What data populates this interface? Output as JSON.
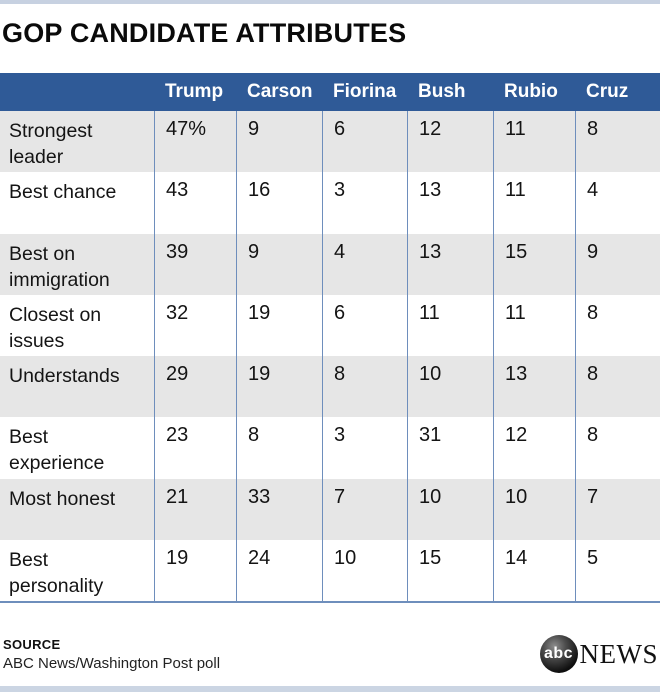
{
  "title": "GOP CANDIDATE ATTRIBUTES",
  "table": {
    "columns": [
      "Trump",
      "Carson",
      "Fiorina",
      "Bush",
      "Rubio",
      "Cruz"
    ],
    "rows": [
      {
        "label": "Strongest leader",
        "values": [
          "47%",
          "9",
          "6",
          "12",
          "11",
          "8"
        ]
      },
      {
        "label": "Best chance",
        "values": [
          "43",
          "16",
          "3",
          "13",
          "11",
          "4"
        ]
      },
      {
        "label": "Best on immigration",
        "values": [
          "39",
          "9",
          "4",
          "13",
          "15",
          "9"
        ]
      },
      {
        "label": "Closest on issues",
        "values": [
          "32",
          "19",
          "6",
          "11",
          "11",
          "8"
        ]
      },
      {
        "label": "Understands",
        "values": [
          "29",
          "19",
          "8",
          "10",
          "13",
          "8"
        ]
      },
      {
        "label": "Best experience",
        "values": [
          "23",
          "8",
          "3",
          "31",
          "12",
          "8"
        ]
      },
      {
        "label": "Most honest",
        "values": [
          "21",
          "33",
          "7",
          "10",
          "10",
          "7"
        ]
      },
      {
        "label": "Best personality",
        "values": [
          "19",
          "24",
          "10",
          "15",
          "14",
          "5"
        ]
      }
    ]
  },
  "footer": {
    "source_label": "SOURCE",
    "source_text": "ABC News/Washington Post poll",
    "logo_circle_text": "abc",
    "logo_news_text": "NEWS"
  },
  "colors": {
    "header_blue": "#2f5a97",
    "row_gray": "#e6e6e6",
    "grid_blue": "#6e8ebc",
    "accent_bar_top": "#c7d1e1",
    "accent_bar_bottom": "#cbd5e3"
  },
  "chart_data": {
    "type": "table",
    "title": "GOP CANDIDATE ATTRIBUTES",
    "columns": [
      "Trump",
      "Carson",
      "Fiorina",
      "Bush",
      "Rubio",
      "Cruz"
    ],
    "rows": [
      "Strongest leader",
      "Best chance",
      "Best on immigration",
      "Closest on issues",
      "Understands",
      "Best experience",
      "Most honest",
      "Best personality"
    ],
    "values_percent": [
      [
        47,
        9,
        6,
        12,
        11,
        8
      ],
      [
        43,
        16,
        3,
        13,
        11,
        4
      ],
      [
        39,
        9,
        4,
        13,
        15,
        9
      ],
      [
        32,
        19,
        6,
        11,
        11,
        8
      ],
      [
        29,
        19,
        8,
        10,
        13,
        8
      ],
      [
        23,
        8,
        3,
        31,
        12,
        8
      ],
      [
        21,
        33,
        7,
        10,
        10,
        7
      ],
      [
        19,
        24,
        10,
        15,
        14,
        5
      ]
    ],
    "source": "ABC News/Washington Post poll"
  }
}
